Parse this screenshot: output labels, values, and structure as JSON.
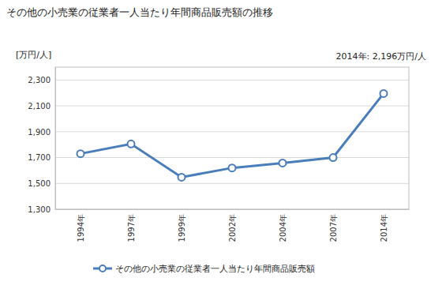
{
  "chart_data": {
    "type": "line",
    "title": "その他の小売業の従業者一人当たり年間商品販売額の推移",
    "y_label": "[万円/人]",
    "annotation": "2014年: 2,196万円/人",
    "categories": [
      "1994年",
      "1997年",
      "1999年",
      "2002年",
      "2004年",
      "2007年",
      "2014年"
    ],
    "series": [
      {
        "name": "その他の小売業の従業者一人当たり年間商品販売額",
        "color": "#4a7ebb",
        "marker": "circle",
        "values": [
          1730,
          1805,
          1548,
          1620,
          1658,
          1700,
          2196
        ]
      }
    ],
    "ylim": [
      1300,
      2400
    ],
    "yticks": [
      {
        "value": 1300,
        "label": "1,300"
      },
      {
        "value": 1500,
        "label": "1,500"
      },
      {
        "value": 1700,
        "label": "1,700"
      },
      {
        "value": 1900,
        "label": "1,900"
      },
      {
        "value": 2100,
        "label": "2,100"
      },
      {
        "value": 2300,
        "label": "2,300"
      }
    ],
    "grid": true,
    "legend": "bottom"
  }
}
